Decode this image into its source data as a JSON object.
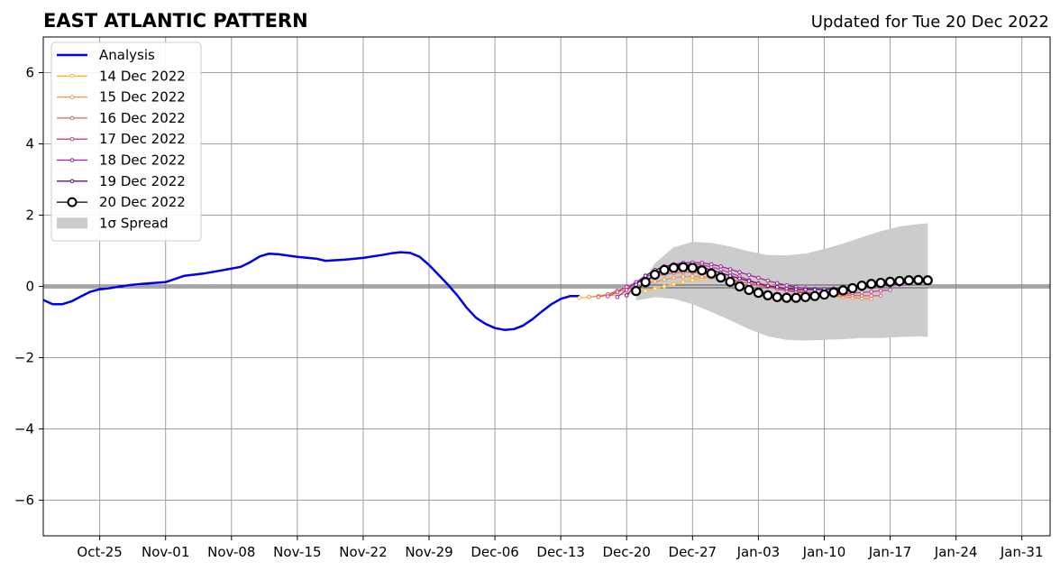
{
  "chart_data": {
    "type": "line",
    "title": "EAST ATLANTIC PATTERN",
    "subtitle": "Updated for Tue 20 Dec 2022",
    "xlabel": "",
    "ylabel": "",
    "x_range": [
      "2022-10-19",
      "2023-02-03"
    ],
    "ylim": [
      -7,
      7
    ],
    "y_ticks": [
      -6,
      -4,
      -2,
      0,
      2,
      4,
      6
    ],
    "y_tick_labels": [
      "−6",
      "−4",
      "−2",
      "0",
      "2",
      "4",
      "6"
    ],
    "x_ticks": [
      "2022-10-25",
      "2022-11-01",
      "2022-11-08",
      "2022-11-15",
      "2022-11-22",
      "2022-11-29",
      "2022-12-06",
      "2022-12-13",
      "2022-12-20",
      "2022-12-27",
      "2023-01-03",
      "2023-01-10",
      "2023-01-17",
      "2023-01-24",
      "2023-01-31"
    ],
    "x_tick_labels": [
      "Oct-25",
      "Nov-01",
      "Nov-08",
      "Nov-15",
      "Nov-22",
      "Nov-29",
      "Dec-06",
      "Dec-13",
      "Dec-20",
      "Dec-27",
      "Jan-03",
      "Jan-10",
      "Jan-17",
      "Jan-24",
      "Jan-31"
    ],
    "grid": true,
    "legend_position": "top-left",
    "spread_label": "1σ Spread",
    "spread": {
      "x": [
        "2022-12-21",
        "2022-12-23",
        "2022-12-25",
        "2022-12-27",
        "2022-12-29",
        "2022-12-31",
        "2023-01-02",
        "2023-01-04",
        "2023-01-06",
        "2023-01-08",
        "2023-01-10",
        "2023-01-12",
        "2023-01-14",
        "2023-01-16",
        "2023-01-18",
        "2023-01-20",
        "2023-01-21"
      ],
      "upper": [
        -0.2,
        0.65,
        1.1,
        1.25,
        1.22,
        1.12,
        0.98,
        0.88,
        0.87,
        0.92,
        1.05,
        1.2,
        1.38,
        1.55,
        1.68,
        1.75,
        1.77
      ],
      "lower": [
        -0.4,
        -0.3,
        -0.35,
        -0.5,
        -0.72,
        -0.95,
        -1.2,
        -1.4,
        -1.5,
        -1.52,
        -1.5,
        -1.48,
        -1.45,
        -1.45,
        -1.42,
        -1.4,
        -1.42
      ]
    },
    "analysis": {
      "name": "Analysis",
      "color": "#0000ee",
      "x": [
        "2022-10-19",
        "2022-10-20",
        "2022-10-21",
        "2022-10-22",
        "2022-10-23",
        "2022-10-24",
        "2022-10-25",
        "2022-10-26",
        "2022-10-28",
        "2022-10-30",
        "2022-11-01",
        "2022-11-03",
        "2022-11-05",
        "2022-11-07",
        "2022-11-09",
        "2022-11-10",
        "2022-11-11",
        "2022-11-12",
        "2022-11-13",
        "2022-11-15",
        "2022-11-17",
        "2022-11-18",
        "2022-11-20",
        "2022-11-22",
        "2022-11-24",
        "2022-11-25",
        "2022-11-26",
        "2022-11-27",
        "2022-11-28",
        "2022-11-29",
        "2022-11-30",
        "2022-12-01",
        "2022-12-02",
        "2022-12-03",
        "2022-12-04",
        "2022-12-05",
        "2022-12-06",
        "2022-12-07",
        "2022-12-08",
        "2022-12-09",
        "2022-12-10",
        "2022-12-11",
        "2022-12-12",
        "2022-12-13",
        "2022-12-14",
        "2022-12-15"
      ],
      "y": [
        -0.38,
        -0.5,
        -0.5,
        -0.42,
        -0.28,
        -0.15,
        -0.08,
        -0.05,
        0.03,
        0.08,
        0.12,
        0.3,
        0.36,
        0.45,
        0.55,
        0.68,
        0.84,
        0.92,
        0.9,
        0.83,
        0.78,
        0.72,
        0.75,
        0.8,
        0.88,
        0.93,
        0.96,
        0.94,
        0.83,
        0.6,
        0.33,
        0.05,
        -0.25,
        -0.6,
        -0.88,
        -1.05,
        -1.17,
        -1.22,
        -1.2,
        -1.1,
        -0.92,
        -0.7,
        -0.5,
        -0.35,
        -0.27,
        -0.27
      ]
    },
    "series": [
      {
        "name": "14 Dec 2022",
        "color": "#ffb830",
        "x": [
          "2022-12-15",
          "2022-12-16",
          "2022-12-17",
          "2022-12-18",
          "2022-12-19",
          "2022-12-20",
          "2022-12-21",
          "2022-12-22",
          "2022-12-23",
          "2022-12-24",
          "2022-12-25",
          "2022-12-26",
          "2022-12-27",
          "2022-12-28",
          "2022-12-29",
          "2022-12-30",
          "2022-12-31",
          "2023-01-01",
          "2023-01-02",
          "2023-01-03",
          "2023-01-04",
          "2023-01-05",
          "2023-01-06",
          "2023-01-07",
          "2023-01-08",
          "2023-01-09",
          "2023-01-10",
          "2023-01-11",
          "2023-01-12",
          "2023-01-13",
          "2023-01-14"
        ],
        "y": [
          -0.32,
          -0.3,
          -0.28,
          -0.26,
          -0.24,
          -0.22,
          -0.18,
          -0.13,
          -0.06,
          0.0,
          0.06,
          0.12,
          0.18,
          0.22,
          0.26,
          0.28,
          0.26,
          0.22,
          0.17,
          0.11,
          0.05,
          0.0,
          -0.05,
          -0.1,
          -0.14,
          -0.18,
          -0.22,
          -0.26,
          -0.29,
          -0.31,
          -0.33
        ]
      },
      {
        "name": "15 Dec 2022",
        "color": "#f78f4a",
        "x": [
          "2022-12-16",
          "2022-12-17",
          "2022-12-18",
          "2022-12-19",
          "2022-12-20",
          "2022-12-21",
          "2022-12-22",
          "2022-12-23",
          "2022-12-24",
          "2022-12-25",
          "2022-12-26",
          "2022-12-27",
          "2022-12-28",
          "2022-12-29",
          "2022-12-30",
          "2022-12-31",
          "2023-01-01",
          "2023-01-02",
          "2023-01-03",
          "2023-01-04",
          "2023-01-05",
          "2023-01-06",
          "2023-01-07",
          "2023-01-08",
          "2023-01-09",
          "2023-01-10",
          "2023-01-11",
          "2023-01-12",
          "2023-01-13",
          "2023-01-14",
          "2023-01-15"
        ],
        "y": [
          -0.3,
          -0.27,
          -0.22,
          -0.16,
          -0.1,
          -0.02,
          0.06,
          0.13,
          0.19,
          0.24,
          0.27,
          0.28,
          0.27,
          0.24,
          0.2,
          0.16,
          0.12,
          0.08,
          0.04,
          0.0,
          -0.04,
          -0.08,
          -0.12,
          -0.16,
          -0.2,
          -0.24,
          -0.27,
          -0.3,
          -0.32,
          -0.34,
          -0.35
        ]
      },
      {
        "name": "16 Dec 2022",
        "color": "#e0636b",
        "x": [
          "2022-12-17",
          "2022-12-18",
          "2022-12-19",
          "2022-12-20",
          "2022-12-21",
          "2022-12-22",
          "2022-12-23",
          "2022-12-24",
          "2022-12-25",
          "2022-12-26",
          "2022-12-27",
          "2022-12-28",
          "2022-12-29",
          "2022-12-30",
          "2022-12-31",
          "2023-01-01",
          "2023-01-02",
          "2023-01-03",
          "2023-01-04",
          "2023-01-05",
          "2023-01-06",
          "2023-01-07",
          "2023-01-08",
          "2023-01-09",
          "2023-01-10",
          "2023-01-11",
          "2023-01-12",
          "2023-01-13",
          "2023-01-14",
          "2023-01-15",
          "2023-01-16"
        ],
        "y": [
          -0.3,
          -0.22,
          -0.12,
          -0.02,
          0.1,
          0.2,
          0.28,
          0.34,
          0.38,
          0.4,
          0.4,
          0.37,
          0.32,
          0.26,
          0.2,
          0.14,
          0.08,
          0.03,
          -0.02,
          -0.06,
          -0.1,
          -0.13,
          -0.16,
          -0.18,
          -0.2,
          -0.22,
          -0.24,
          -0.25,
          -0.26,
          -0.26,
          -0.26
        ]
      },
      {
        "name": "17 Dec 2022",
        "color": "#c1418f",
        "x": [
          "2022-12-18",
          "2022-12-19",
          "2022-12-20",
          "2022-12-21",
          "2022-12-22",
          "2022-12-23",
          "2022-12-24",
          "2022-12-25",
          "2022-12-26",
          "2022-12-27",
          "2022-12-28",
          "2022-12-29",
          "2022-12-30",
          "2022-12-31",
          "2023-01-01",
          "2023-01-02",
          "2023-01-03",
          "2023-01-04",
          "2023-01-05",
          "2023-01-06",
          "2023-01-07",
          "2023-01-08",
          "2023-01-09",
          "2023-01-10",
          "2023-01-11",
          "2023-01-12",
          "2023-01-13",
          "2023-01-14",
          "2023-01-15",
          "2023-01-16",
          "2023-01-17"
        ],
        "y": [
          -0.28,
          -0.16,
          -0.02,
          0.12,
          0.26,
          0.38,
          0.48,
          0.55,
          0.6,
          0.62,
          0.6,
          0.55,
          0.47,
          0.38,
          0.28,
          0.18,
          0.08,
          0.0,
          -0.07,
          -0.12,
          -0.16,
          -0.19,
          -0.21,
          -0.22,
          -0.22,
          -0.21,
          -0.19,
          -0.17,
          -0.15,
          -0.12,
          -0.1
        ]
      },
      {
        "name": "18 Dec 2022",
        "color": "#9b22a4",
        "x": [
          "2022-12-19",
          "2022-12-20",
          "2022-12-21",
          "2022-12-22",
          "2022-12-23",
          "2022-12-24",
          "2022-12-25",
          "2022-12-26",
          "2022-12-27",
          "2022-12-28",
          "2022-12-29",
          "2022-12-30",
          "2022-12-31",
          "2023-01-01",
          "2023-01-02",
          "2023-01-03",
          "2023-01-04",
          "2023-01-05",
          "2023-01-06",
          "2023-01-07",
          "2023-01-08",
          "2023-01-09",
          "2023-01-10",
          "2023-01-11",
          "2023-01-12",
          "2023-01-13",
          "2023-01-14",
          "2023-01-15",
          "2023-01-16",
          "2023-01-17",
          "2023-01-18"
        ],
        "y": [
          -0.3,
          -0.1,
          0.12,
          0.3,
          0.45,
          0.55,
          0.62,
          0.66,
          0.67,
          0.66,
          0.62,
          0.56,
          0.48,
          0.4,
          0.32,
          0.24,
          0.16,
          0.09,
          0.03,
          -0.02,
          -0.05,
          -0.07,
          -0.08,
          -0.08,
          -0.07,
          -0.05,
          -0.03,
          -0.01,
          0.01,
          0.03,
          0.05
        ]
      },
      {
        "name": "19 Dec 2022",
        "color": "#5b0f9a",
        "x": [
          "2022-12-20",
          "2022-12-21",
          "2022-12-22",
          "2022-12-23",
          "2022-12-24",
          "2022-12-25",
          "2022-12-26",
          "2022-12-27",
          "2022-12-28",
          "2022-12-29",
          "2022-12-30",
          "2022-12-31",
          "2023-01-01",
          "2023-01-02",
          "2023-01-03",
          "2023-01-04",
          "2023-01-05",
          "2023-01-06",
          "2023-01-07",
          "2023-01-08",
          "2023-01-09",
          "2023-01-10",
          "2023-01-11",
          "2023-01-12",
          "2023-01-13",
          "2023-01-14",
          "2023-01-15",
          "2023-01-16",
          "2023-01-17",
          "2023-01-18",
          "2023-01-19"
        ],
        "y": [
          -0.25,
          0.05,
          0.3,
          0.46,
          0.56,
          0.6,
          0.61,
          0.58,
          0.53,
          0.46,
          0.38,
          0.3,
          0.22,
          0.15,
          0.08,
          0.02,
          -0.02,
          -0.06,
          -0.08,
          -0.09,
          -0.09,
          -0.08,
          -0.06,
          -0.04,
          -0.02,
          0.0,
          0.02,
          0.04,
          0.06,
          0.08,
          0.1
        ]
      }
    ],
    "current": {
      "name": "20 Dec 2022",
      "color": "#000000",
      "x": [
        "2022-12-21",
        "2022-12-22",
        "2022-12-23",
        "2022-12-24",
        "2022-12-25",
        "2022-12-26",
        "2022-12-27",
        "2022-12-28",
        "2022-12-29",
        "2022-12-30",
        "2022-12-31",
        "2023-01-01",
        "2023-01-02",
        "2023-01-03",
        "2023-01-04",
        "2023-01-05",
        "2023-01-06",
        "2023-01-07",
        "2023-01-08",
        "2023-01-09",
        "2023-01-10",
        "2023-01-11",
        "2023-01-12",
        "2023-01-13",
        "2023-01-14",
        "2023-01-15",
        "2023-01-16",
        "2023-01-17",
        "2023-01-18",
        "2023-01-19",
        "2023-01-20",
        "2023-01-21"
      ],
      "y": [
        -0.13,
        0.12,
        0.33,
        0.46,
        0.52,
        0.54,
        0.52,
        0.45,
        0.36,
        0.25,
        0.13,
        0.0,
        -0.1,
        -0.18,
        -0.25,
        -0.3,
        -0.32,
        -0.32,
        -0.3,
        -0.27,
        -0.23,
        -0.17,
        -0.11,
        -0.05,
        0.02,
        0.07,
        0.1,
        0.13,
        0.15,
        0.17,
        0.18,
        0.17
      ]
    }
  }
}
